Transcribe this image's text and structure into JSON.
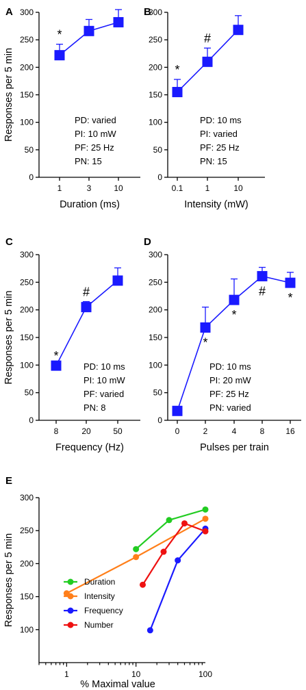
{
  "chart_data": [
    {
      "panel": "A",
      "type": "line",
      "x_scale": "categorical",
      "categories": [
        "1",
        "3",
        "10"
      ],
      "values": [
        222,
        266,
        282
      ],
      "error_upper": [
        242,
        287,
        305
      ],
      "ylabel": "Responses per 5 min",
      "xlabel": "Duration (ms)",
      "ylim": [
        0,
        300
      ],
      "yticks": [
        0,
        50,
        100,
        150,
        200,
        250,
        300
      ],
      "markers": [
        "*",
        "",
        ""
      ],
      "parameters": [
        "PD: varied",
        "PI: 10 mW",
        "PF: 25 Hz",
        "PN: 15"
      ],
      "color": "#1a1aff"
    },
    {
      "panel": "B",
      "type": "line",
      "x_scale": "categorical",
      "categories": [
        "0.1",
        "1",
        "10"
      ],
      "values": [
        155,
        210,
        268
      ],
      "error_upper": [
        178,
        235,
        294
      ],
      "ylabel": "",
      "xlabel": "Intensity (mW)",
      "ylim": [
        0,
        300
      ],
      "yticks": [
        0,
        50,
        100,
        150,
        200,
        250,
        300
      ],
      "markers": [
        "*",
        "#",
        ""
      ],
      "parameters": [
        "PD: 10 ms",
        "PI: varied",
        "PF: 25 Hz",
        "PN: 15"
      ],
      "color": "#1a1aff"
    },
    {
      "panel": "C",
      "type": "line",
      "x_scale": "categorical",
      "categories": [
        "8",
        "20",
        "50"
      ],
      "values": [
        99,
        205,
        253
      ],
      "error_upper": [
        99,
        215,
        276
      ],
      "ylabel": "Responses per 5 min",
      "xlabel": "Frequency (Hz)",
      "ylim": [
        0,
        300
      ],
      "yticks": [
        0,
        50,
        100,
        150,
        200,
        250,
        300
      ],
      "markers": [
        "*",
        "#",
        ""
      ],
      "parameters": [
        "PD: 10 ms",
        "PI: 10 mW",
        "PF: varied",
        "PN: 8"
      ],
      "color": "#1a1aff"
    },
    {
      "panel": "D",
      "type": "line",
      "x_scale": "categorical",
      "categories": [
        "0",
        "2",
        "4",
        "8",
        "16"
      ],
      "values": [
        17,
        168,
        218,
        261,
        249
      ],
      "error_upper": [
        17,
        205,
        256,
        277,
        268
      ],
      "ylabel": "",
      "xlabel": "Pulses per train",
      "ylim": [
        0,
        300
      ],
      "yticks": [
        0,
        50,
        100,
        150,
        200,
        250,
        300
      ],
      "markers": [
        "",
        "*",
        "*",
        "#",
        "*"
      ],
      "parameters": [
        "PD: 10 ms",
        "PI: 20 mW",
        "PF: 25 Hz",
        "PN: varied"
      ],
      "color": "#1a1aff"
    },
    {
      "panel": "E",
      "type": "line",
      "x_scale": "log",
      "xlim": [
        0.4,
        100
      ],
      "xticks": [
        1,
        10,
        100
      ],
      "xticklabels": [
        "1",
        "10",
        "100"
      ],
      "ylim": [
        50,
        300
      ],
      "yticks": [
        100,
        150,
        200,
        250,
        300
      ],
      "ylabel": "Responses per 5 min",
      "xlabel": "% Maximal value",
      "legend_position": "bottom-left",
      "series": [
        {
          "name": "Duration",
          "color": "#22cc22",
          "x": [
            10,
            30,
            100
          ],
          "values": [
            222,
            266,
            282
          ]
        },
        {
          "name": "Intensity",
          "color": "#ff7f1a",
          "x": [
            1,
            10,
            100
          ],
          "values": [
            155,
            210,
            268
          ]
        },
        {
          "name": "Frequency",
          "color": "#1a1aff",
          "x": [
            16,
            40,
            100
          ],
          "values": [
            99,
            205,
            253
          ]
        },
        {
          "name": "Number",
          "color": "#ee1111",
          "x": [
            12.5,
            25,
            50,
            100
          ],
          "values": [
            168,
            218,
            261,
            249
          ]
        }
      ]
    }
  ]
}
